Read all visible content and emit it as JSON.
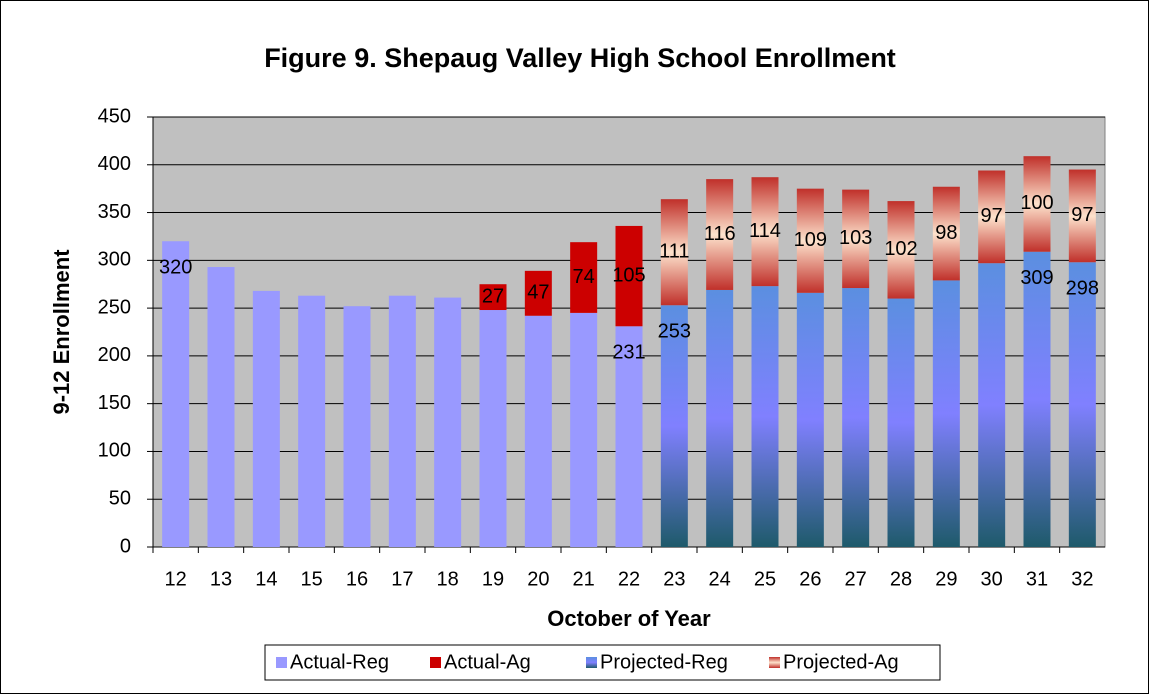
{
  "chart_data": {
    "type": "stacked_bar",
    "title": "Figure 9. Shepaug Valley High School Enrollment",
    "y_label": "9-12 Enrollment",
    "x_label": "October of Year",
    "categories": [
      "12",
      "13",
      "14",
      "15",
      "16",
      "17",
      "18",
      "19",
      "20",
      "21",
      "22",
      "23",
      "24",
      "25",
      "26",
      "27",
      "28",
      "29",
      "30",
      "31",
      "32"
    ],
    "series": [
      {
        "name": "Actual-Reg",
        "color": "#9999ff",
        "values": [
          320,
          293,
          268,
          263,
          252,
          263,
          261,
          248,
          242,
          245,
          231,
          null,
          null,
          null,
          null,
          null,
          null,
          null,
          null,
          null,
          null
        ],
        "value_labels": [
          "320",
          null,
          null,
          null,
          null,
          null,
          null,
          null,
          null,
          null,
          "231",
          null,
          null,
          null,
          null,
          null,
          null,
          null,
          null,
          null,
          null
        ]
      },
      {
        "name": "Actual-Ag",
        "color": "#cc0000",
        "values": [
          null,
          null,
          null,
          null,
          null,
          null,
          null,
          27,
          47,
          74,
          105,
          null,
          null,
          null,
          null,
          null,
          null,
          null,
          null,
          null,
          null
        ],
        "value_labels": [
          null,
          null,
          null,
          null,
          null,
          null,
          null,
          "27",
          "47",
          "74",
          "105",
          null,
          null,
          null,
          null,
          null,
          null,
          null,
          null,
          null,
          null
        ]
      },
      {
        "name": "Projected-Reg",
        "color": [
          "#5b8fe0",
          "#8080ff",
          "#1e5a6a"
        ],
        "values": [
          null,
          null,
          null,
          null,
          null,
          null,
          null,
          null,
          null,
          null,
          null,
          253,
          269,
          273,
          266,
          271,
          260,
          279,
          297,
          309,
          298
        ],
        "value_labels": [
          null,
          null,
          null,
          null,
          null,
          null,
          null,
          null,
          null,
          null,
          null,
          "253",
          null,
          null,
          null,
          null,
          null,
          null,
          null,
          "309",
          "298"
        ]
      },
      {
        "name": "Projected-Ag",
        "color": [
          "#c0302a",
          "#fde2cc",
          "#c0302a"
        ],
        "values": [
          null,
          null,
          null,
          null,
          null,
          null,
          null,
          null,
          null,
          null,
          null,
          111,
          116,
          114,
          109,
          103,
          102,
          98,
          97,
          100,
          97
        ],
        "value_labels": [
          null,
          null,
          null,
          null,
          null,
          null,
          null,
          null,
          null,
          null,
          null,
          "111",
          "116",
          "114",
          "109",
          "103",
          "102",
          "98",
          "97",
          "100",
          "97"
        ]
      }
    ],
    "ylim": [
      0,
      450
    ],
    "yticks": [
      0,
      50,
      100,
      150,
      200,
      250,
      300,
      350,
      400,
      450
    ],
    "grid": true,
    "legend": "bottom"
  }
}
